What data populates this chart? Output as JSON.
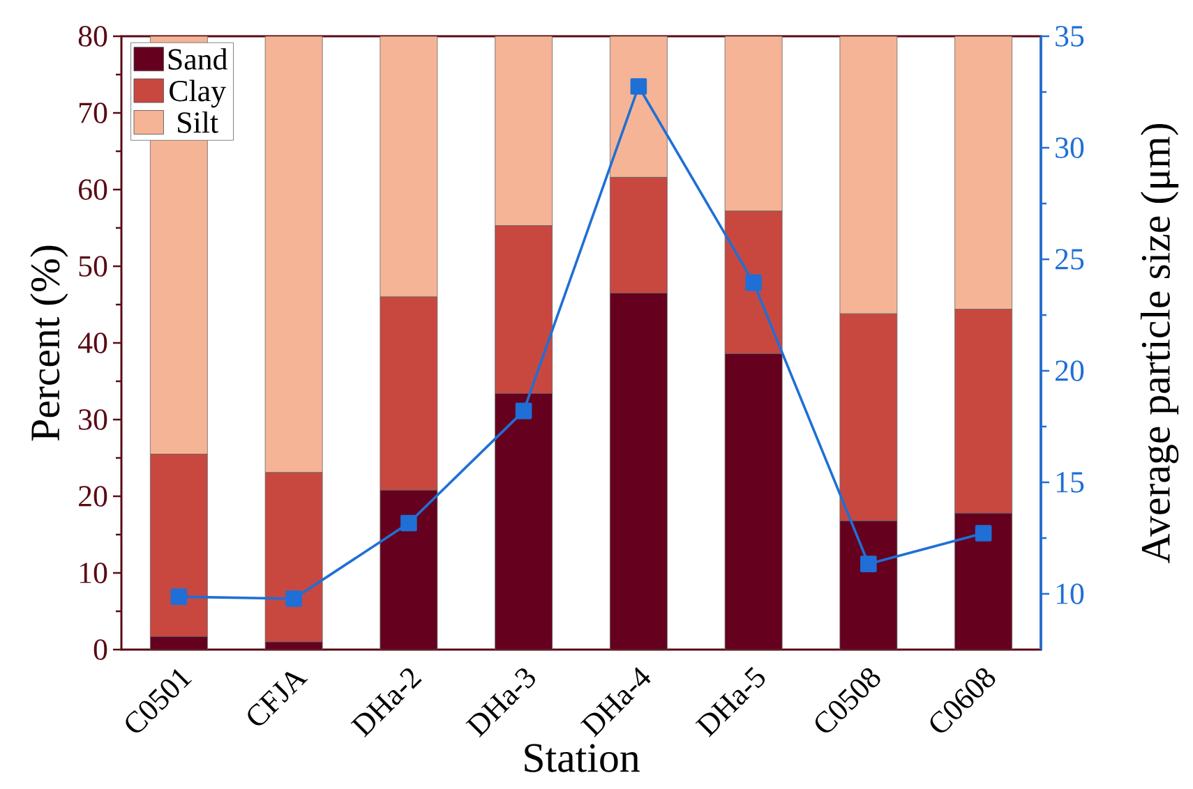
{
  "chart_data": {
    "type": "bar",
    "stacked": true,
    "legend": "top left",
    "xlabel": "Station",
    "ylabel": "Percent (%)",
    "y2label": "Average particle size (μm)",
    "categories": [
      "C0501",
      "CFJA",
      "DHa-2",
      "DHa-3",
      "DHa-4",
      "DHa-5",
      "C0508",
      "C0608"
    ],
    "ylim": [
      0,
      80
    ],
    "yticks": [
      0,
      10,
      20,
      30,
      40,
      50,
      60,
      70,
      80
    ],
    "y2lim": [
      7.5,
      35
    ],
    "y2ticks": [
      10,
      15,
      20,
      25,
      30,
      35
    ],
    "series": [
      {
        "name": "Sand",
        "color": "#65001e",
        "values": [
          1.7,
          1.0,
          20.8,
          33.4,
          46.5,
          38.6,
          16.8,
          17.8
        ]
      },
      {
        "name": "Clay",
        "color": "#c84840",
        "values": [
          23.8,
          22.1,
          25.2,
          21.9,
          15.1,
          18.6,
          27.0,
          26.6
        ]
      },
      {
        "name": "Silt",
        "color": "#f5b496",
        "values": [
          54.5,
          56.9,
          34.0,
          24.7,
          18.4,
          22.8,
          36.2,
          35.6
        ]
      },
      {
        "type": "line",
        "axis": "y2",
        "marker": "square",
        "color": "#1f6fd6",
        "values": [
          9.87,
          9.78,
          13.17,
          18.2,
          32.75,
          23.95,
          11.34,
          12.72
        ]
      }
    ]
  }
}
